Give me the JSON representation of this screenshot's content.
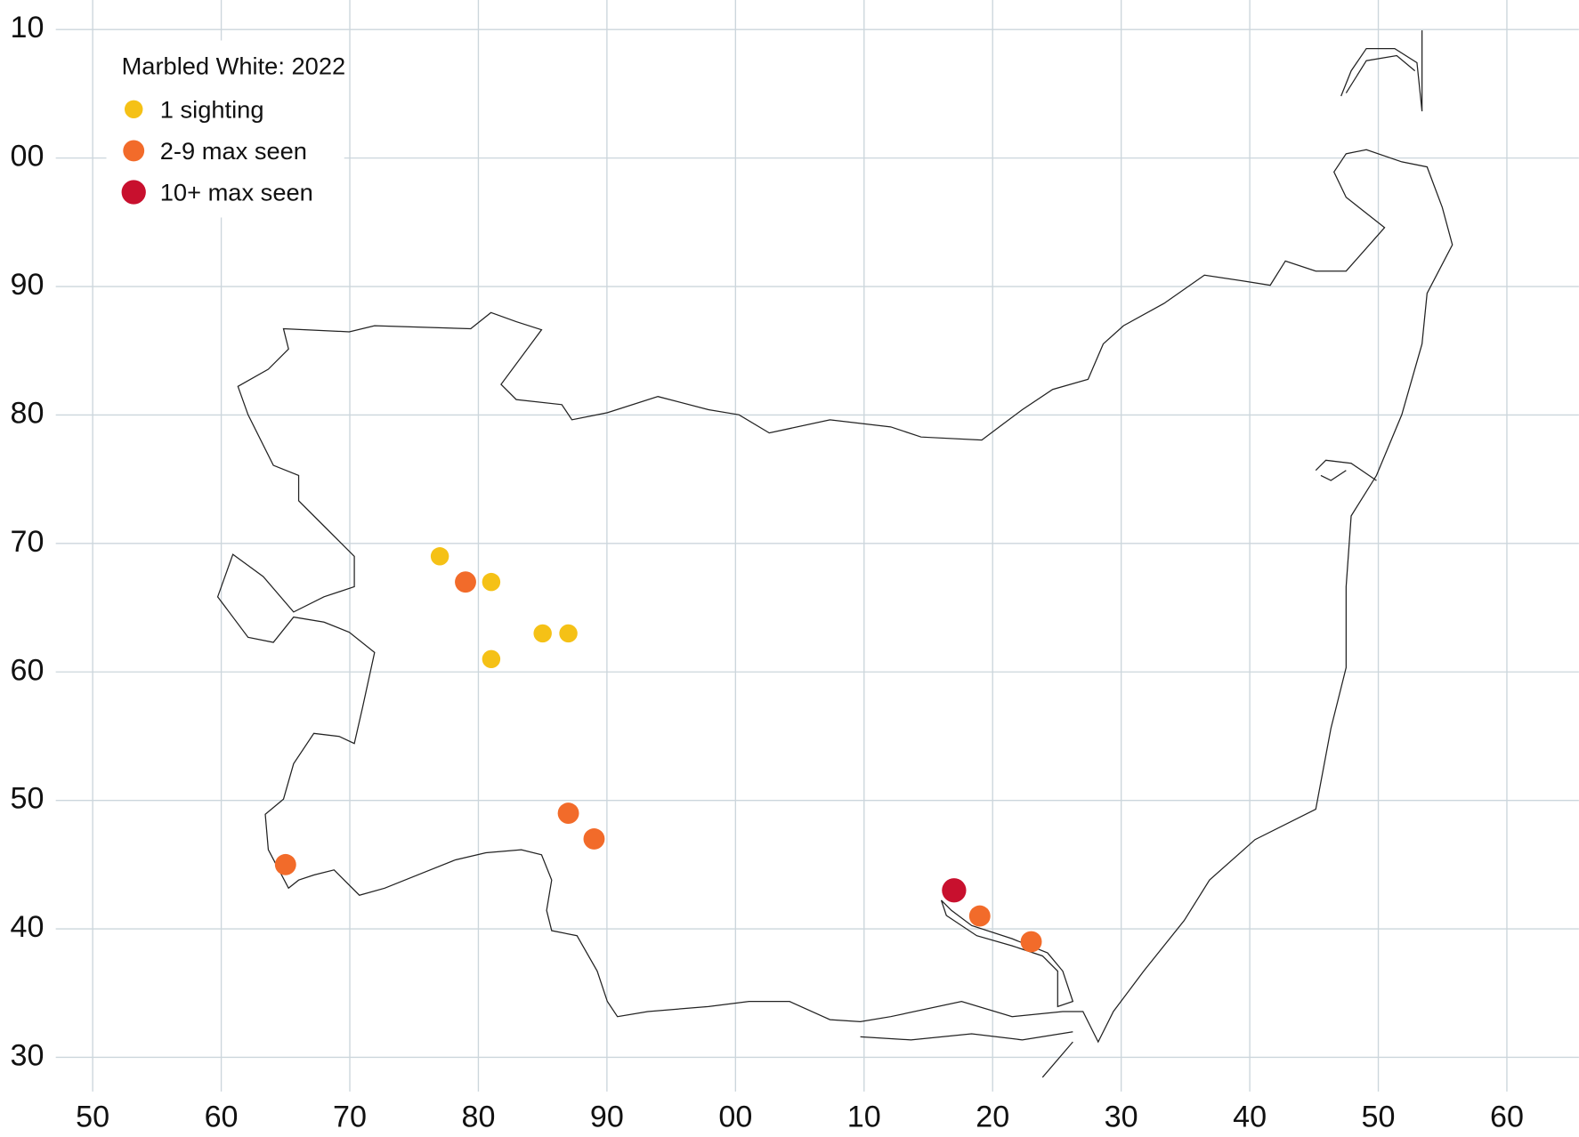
{
  "chart_data": {
    "type": "scatter",
    "legend_title": "Marbled White:  2022",
    "series": [
      {
        "name": "1 sighting",
        "color": "#f5c116",
        "x": [
          77,
          81,
          85,
          87,
          81
        ],
        "values": [
          69,
          67,
          63,
          63,
          61
        ]
      },
      {
        "name": "2-9 max seen",
        "color": "#f26b2a",
        "x": [
          79,
          65,
          87,
          89,
          119,
          123
        ],
        "values": [
          67,
          45,
          49,
          47,
          41,
          39
        ]
      },
      {
        "name": "10+ max seen",
        "color": "#c8102e",
        "x": [
          117
        ],
        "values": [
          43
        ]
      }
    ],
    "xlim": [
      42.8,
      165.6
    ],
    "ylim": [
      23.8,
      112.3
    ],
    "xticks": [
      50,
      60,
      70,
      80,
      90,
      {
        "value": 100,
        "label": "00"
      },
      {
        "value": 110,
        "label": "10"
      },
      {
        "value": 120,
        "label": "20"
      },
      {
        "value": 130,
        "label": "30"
      },
      {
        "value": 140,
        "label": "40"
      },
      {
        "value": 150,
        "label": "50"
      },
      {
        "value": 160,
        "label": "60"
      }
    ],
    "yticks": [
      30,
      40,
      50,
      60,
      70,
      80,
      90,
      {
        "value": 100,
        "label": "00"
      },
      {
        "value": 110,
        "label": "10"
      }
    ],
    "grid": true,
    "legend_position": "top-left"
  }
}
